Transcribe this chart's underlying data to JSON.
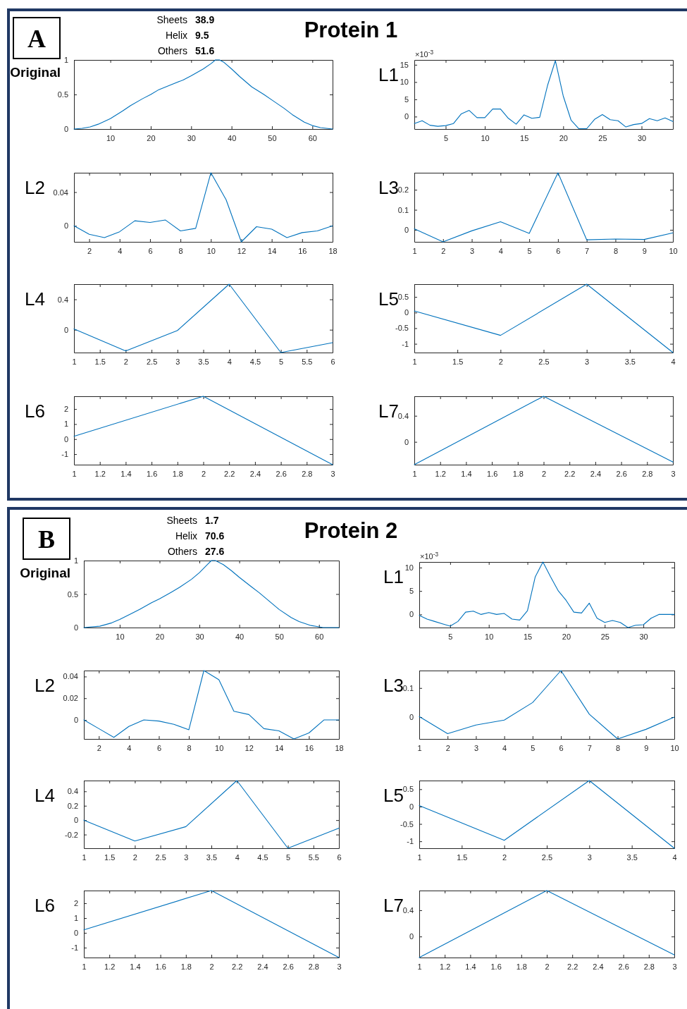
{
  "chart_data": [
    {
      "type": "line",
      "title": "Original",
      "annotations": [
        "A",
        "Protein 1",
        "Sheets",
        "38.9",
        "Helix",
        "9.5",
        "Others",
        "51.6"
      ],
      "x": [
        1,
        3,
        5,
        7,
        10,
        13,
        15,
        18,
        20,
        22,
        25,
        28,
        30,
        33,
        35,
        36,
        37,
        38,
        40,
        42,
        45,
        48,
        50,
        53,
        55,
        58,
        60,
        62,
        65
      ],
      "xlim": [
        1,
        65
      ],
      "xticks": [
        10,
        20,
        30,
        40,
        50,
        60
      ],
      "ylim": [
        0,
        1
      ],
      "yticks": [
        0,
        0.5,
        1
      ],
      "series": [
        {
          "color": "#0072bd",
          "values": [
            0,
            0.01,
            0.03,
            0.07,
            0.15,
            0.26,
            0.34,
            0.44,
            0.5,
            0.57,
            0.64,
            0.71,
            0.77,
            0.87,
            0.95,
            1,
            1,
            0.97,
            0.87,
            0.76,
            0.61,
            0.5,
            0.42,
            0.3,
            0.21,
            0.1,
            0.05,
            0.02,
            0
          ]
        }
      ]
    },
    {
      "type": "line",
      "title": "L1",
      "annotations": [
        "×10$^{-3}$"
      ],
      "x": [
        1,
        2,
        3,
        4,
        5,
        6,
        7,
        8,
        9,
        10,
        11,
        12,
        13,
        14,
        15,
        16,
        17,
        18,
        19,
        20,
        21,
        22,
        23,
        24,
        25,
        26,
        27,
        28,
        29,
        30,
        31,
        32,
        33,
        34
      ],
      "xlim": [
        1,
        34
      ],
      "xticks": [
        5,
        10,
        15,
        20,
        25,
        30
      ],
      "ylim": [
        -3.6,
        16.4
      ],
      "yticks": [
        0,
        5,
        10,
        15
      ],
      "series": [
        {
          "color": "#0072bd",
          "values": [
            -2,
            -1.2,
            -2.5,
            -2.8,
            -2.6,
            -2,
            0.8,
            1.8,
            -0.3,
            -0.3,
            2.2,
            2.2,
            -0.5,
            -2.2,
            0.5,
            -0.5,
            -0.2,
            9,
            16.2,
            6,
            -1,
            -3.5,
            -3.5,
            -0.8,
            0.6,
            -0.9,
            -1.2,
            -3,
            -2.3,
            -2,
            -0.6,
            -1.2,
            -0.4,
            -1.4
          ]
        }
      ]
    },
    {
      "type": "line",
      "title": "L2",
      "x": [
        1,
        2,
        3,
        4,
        5,
        6,
        7,
        8,
        9,
        10,
        11,
        12,
        13,
        14,
        15,
        16,
        17,
        18
      ],
      "xlim": [
        1,
        18
      ],
      "xticks": [
        2,
        4,
        6,
        8,
        10,
        12,
        14,
        16,
        18
      ],
      "ylim": [
        -0.019,
        0.063
      ],
      "yticks": [
        0,
        0.04
      ],
      "series": [
        {
          "color": "#0072bd",
          "values": [
            0,
            -0.01,
            -0.014,
            -0.007,
            0.006,
            0.004,
            0.007,
            -0.006,
            -0.003,
            0.063,
            0.031,
            -0.019,
            -0.001,
            -0.004,
            -0.014,
            -0.008,
            -0.006,
            0
          ]
        }
      ]
    },
    {
      "type": "line",
      "title": "L3",
      "x": [
        1,
        2,
        3,
        4,
        5,
        6,
        7,
        8,
        9,
        10
      ],
      "xlim": [
        1,
        10
      ],
      "xticks": [
        1,
        2,
        3,
        4,
        5,
        6,
        7,
        8,
        9,
        10
      ],
      "ylim": [
        -0.06,
        0.285
      ],
      "yticks": [
        0,
        0.1,
        0.2
      ],
      "series": [
        {
          "color": "#0072bd",
          "values": [
            0.005,
            -0.06,
            -0.005,
            0.04,
            -0.018,
            0.285,
            -0.05,
            -0.046,
            -0.048,
            -0.015
          ]
        }
      ]
    },
    {
      "type": "line",
      "title": "L4",
      "x": [
        1,
        2,
        3,
        4,
        5,
        6
      ],
      "xlim": [
        1,
        6
      ],
      "xticks": [
        1,
        1.5,
        2,
        2.5,
        3,
        3.5,
        4,
        4.5,
        5,
        5.5,
        6
      ],
      "ylim": [
        -0.3,
        0.6
      ],
      "yticks": [
        0,
        0.4
      ],
      "series": [
        {
          "color": "#0072bd",
          "values": [
            0.01,
            -0.28,
            -0.01,
            0.6,
            -0.3,
            -0.17
          ]
        }
      ]
    },
    {
      "type": "line",
      "title": "L5",
      "x": [
        1,
        2,
        3,
        4
      ],
      "xlim": [
        1,
        4
      ],
      "xticks": [
        1,
        1.5,
        2,
        2.5,
        3,
        3.5,
        4
      ],
      "ylim": [
        -1.28,
        0.91
      ],
      "yticks": [
        -1,
        -0.5,
        0,
        0.5
      ],
      "series": [
        {
          "color": "#0072bd",
          "values": [
            0.05,
            -0.73,
            0.91,
            -1.28
          ]
        }
      ]
    },
    {
      "type": "line",
      "title": "L6",
      "x": [
        1,
        2,
        3
      ],
      "xlim": [
        1,
        3
      ],
      "xticks": [
        1,
        1.2,
        1.4,
        1.6,
        1.8,
        2,
        2.2,
        2.4,
        2.6,
        2.8,
        3
      ],
      "ylim": [
        -1.7,
        2.85
      ],
      "yticks": [
        -1,
        0,
        1,
        2
      ],
      "series": [
        {
          "color": "#0072bd",
          "values": [
            0.19,
            2.85,
            -1.7
          ]
        }
      ]
    },
    {
      "type": "line",
      "title": "L7",
      "x": [
        1,
        2,
        3
      ],
      "xlim": [
        1,
        3
      ],
      "xticks": [
        1,
        1.2,
        1.4,
        1.6,
        1.8,
        2,
        2.2,
        2.4,
        2.6,
        2.8,
        3
      ],
      "ylim": [
        -0.35,
        0.7
      ],
      "yticks": [
        0,
        0.4
      ],
      "series": [
        {
          "color": "#0072bd",
          "values": [
            -0.35,
            0.7,
            -0.31
          ]
        }
      ]
    },
    {
      "type": "line",
      "title": "Original",
      "annotations": [
        "B",
        "Protein 2",
        "Sheets",
        "1.7",
        "Helix",
        "70.6",
        "Others",
        "27.6"
      ],
      "x": [
        1,
        5,
        8,
        10,
        13,
        15,
        18,
        20,
        23,
        25,
        28,
        30,
        32,
        33,
        34,
        36,
        38,
        40,
        43,
        45,
        48,
        50,
        53,
        55,
        58,
        60,
        61,
        65
      ],
      "xlim": [
        1,
        65
      ],
      "xticks": [
        10,
        20,
        30,
        40,
        50,
        60
      ],
      "ylim": [
        0,
        1
      ],
      "yticks": [
        0,
        0.5,
        1
      ],
      "series": [
        {
          "color": "#0072bd",
          "values": [
            0,
            0.02,
            0.07,
            0.12,
            0.21,
            0.27,
            0.37,
            0.43,
            0.53,
            0.6,
            0.72,
            0.82,
            0.94,
            1,
            1,
            0.94,
            0.85,
            0.75,
            0.61,
            0.52,
            0.37,
            0.27,
            0.15,
            0.09,
            0.03,
            0.01,
            0,
            0
          ]
        }
      ]
    },
    {
      "type": "line",
      "title": "L1",
      "annotations": [
        "×10$^{-3}$"
      ],
      "x": [
        1,
        2,
        3,
        4,
        5,
        6,
        7,
        8,
        9,
        10,
        11,
        12,
        13,
        14,
        15,
        16,
        17,
        18,
        19,
        20,
        21,
        22,
        23,
        24,
        25,
        26,
        27,
        28,
        29,
        30,
        31,
        32,
        33,
        34
      ],
      "xlim": [
        1,
        34
      ],
      "xticks": [
        5,
        10,
        15,
        20,
        25,
        30
      ],
      "ylim": [
        -2.8,
        11.2
      ],
      "yticks": [
        0,
        5,
        10
      ],
      "series": [
        {
          "color": "#0072bd",
          "values": [
            -0.2,
            -1,
            -1.5,
            -2,
            -2.5,
            -1.5,
            0.5,
            0.7,
            0,
            0.4,
            0,
            0.2,
            -1,
            -1.2,
            0.8,
            8,
            11.2,
            8,
            5,
            3,
            0.5,
            0.3,
            2.4,
            -0.8,
            -1.7,
            -1.3,
            -1.7,
            -2.8,
            -2.3,
            -2.2,
            -0.8,
            0,
            0,
            0
          ]
        }
      ]
    },
    {
      "type": "line",
      "title": "L2",
      "x": [
        1,
        2,
        3,
        4,
        5,
        6,
        7,
        8,
        9,
        10,
        11,
        12,
        13,
        14,
        15,
        16,
        17,
        18
      ],
      "xlim": [
        1,
        18
      ],
      "xticks": [
        2,
        4,
        6,
        8,
        10,
        12,
        14,
        16,
        18
      ],
      "ylim": [
        -0.0175,
        0.0455
      ],
      "yticks": [
        0,
        0.02,
        0.04
      ],
      "series": [
        {
          "color": "#0072bd",
          "values": [
            0,
            -0.008,
            -0.016,
            -0.006,
            0,
            -0.001,
            -0.004,
            -0.009,
            0.0455,
            0.037,
            0.008,
            0.005,
            -0.008,
            -0.01,
            -0.0175,
            -0.012,
            0,
            0
          ]
        }
      ]
    },
    {
      "type": "line",
      "title": "L3",
      "x": [
        1,
        2,
        3,
        4,
        5,
        6,
        7,
        8,
        9,
        10
      ],
      "xlim": [
        1,
        10
      ],
      "xticks": [
        1,
        2,
        3,
        4,
        5,
        6,
        7,
        8,
        9,
        10
      ],
      "ylim": [
        -0.075,
        0.16
      ],
      "yticks": [
        0,
        0.1
      ],
      "series": [
        {
          "color": "#0072bd",
          "values": [
            0.002,
            -0.057,
            -0.027,
            -0.01,
            0.05,
            0.16,
            0.01,
            -0.075,
            -0.042,
            0
          ]
        }
      ]
    },
    {
      "type": "line",
      "title": "L4",
      "x": [
        1,
        2,
        3,
        4,
        5,
        6
      ],
      "xlim": [
        1,
        6
      ],
      "xticks": [
        1,
        1.5,
        2,
        2.5,
        3,
        3.5,
        4,
        4.5,
        5,
        5.5,
        6
      ],
      "ylim": [
        -0.39,
        0.55
      ],
      "yticks": [
        -0.2,
        0,
        0.2,
        0.4
      ],
      "series": [
        {
          "color": "#0072bd",
          "values": [
            0,
            -0.29,
            -0.09,
            0.55,
            -0.39,
            -0.11
          ]
        }
      ]
    },
    {
      "type": "line",
      "title": "L5",
      "x": [
        1,
        2,
        3,
        4
      ],
      "xlim": [
        1,
        4
      ],
      "xticks": [
        1,
        1.5,
        2,
        2.5,
        3,
        3.5,
        4
      ],
      "ylim": [
        -1.2,
        0.75
      ],
      "yticks": [
        -1,
        -0.5,
        0,
        0.5
      ],
      "series": [
        {
          "color": "#0072bd",
          "values": [
            0.03,
            -0.97,
            0.75,
            -1.2
          ]
        }
      ]
    },
    {
      "type": "line",
      "title": "L6",
      "x": [
        1,
        2,
        3
      ],
      "xlim": [
        1,
        3
      ],
      "xticks": [
        1,
        1.2,
        1.4,
        1.6,
        1.8,
        2,
        2.2,
        2.4,
        2.6,
        2.8,
        3
      ],
      "ylim": [
        -1.67,
        2.86
      ],
      "yticks": [
        -1,
        0,
        1,
        2
      ],
      "series": [
        {
          "color": "#0072bd",
          "values": [
            0.2,
            2.86,
            -1.67
          ]
        }
      ]
    },
    {
      "type": "line",
      "title": "L7",
      "x": [
        1,
        2,
        3
      ],
      "xlim": [
        1,
        3
      ],
      "xticks": [
        1,
        1.2,
        1.4,
        1.6,
        1.8,
        2,
        2.2,
        2.4,
        2.6,
        2.8,
        3
      ],
      "ylim": [
        -0.32,
        0.7
      ],
      "yticks": [
        0,
        0.4
      ],
      "series": [
        {
          "color": "#0072bd",
          "values": [
            -0.32,
            0.7,
            -0.28
          ]
        }
      ]
    }
  ]
}
